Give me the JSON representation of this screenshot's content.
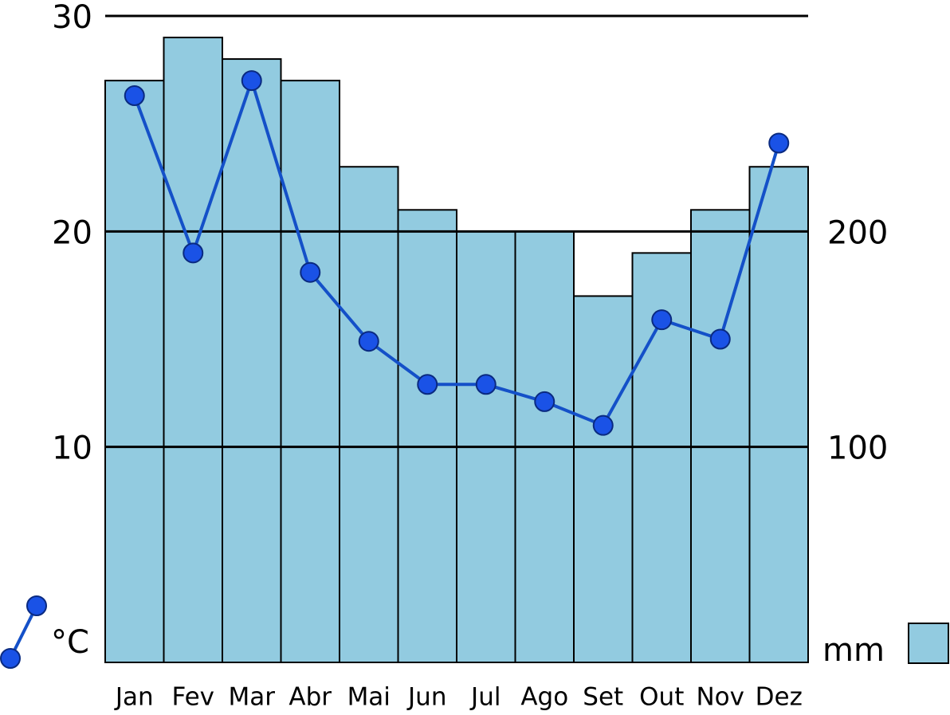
{
  "chart_data": {
    "type": "combo",
    "categories": [
      "Jan",
      "Fev",
      "Mar",
      "Abr",
      "Mai",
      "Jun",
      "Jul",
      "Ago",
      "Set",
      "Out",
      "Nov",
      "Dez"
    ],
    "series": [
      {
        "name": "mm",
        "type": "bar",
        "axis": "y2",
        "color": "#92cbe0",
        "values": [
          270,
          290,
          280,
          270,
          230,
          210,
          200,
          200,
          170,
          190,
          210,
          230
        ]
      },
      {
        "name": "°C",
        "type": "line",
        "color": "#1450c8",
        "values": [
          26.3,
          19.0,
          27.0,
          18.1,
          14.9,
          12.9,
          12.9,
          12.1,
          11.0,
          15.9,
          15.0,
          24.1
        ]
      }
    ],
    "ylim": [
      0,
      30
    ],
    "yticks": [
      10,
      20,
      30
    ],
    "y2lim": [
      0,
      300
    ],
    "y2ticks": [
      100,
      200
    ],
    "grid": true
  }
}
